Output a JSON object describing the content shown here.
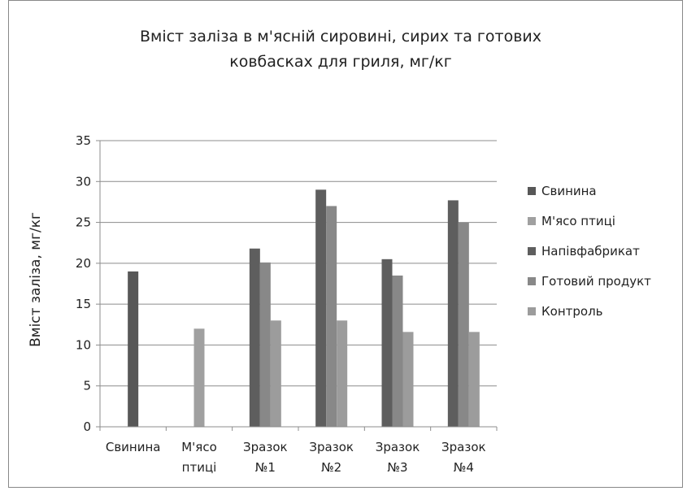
{
  "chart_data": {
    "type": "bar",
    "title_line1": "Вміст заліза в м'ясній сировині, сирих та готових",
    "title_line2": "ковбасках для гриля, мг/кг",
    "ylabel": "Вміст заліза, мг/кг",
    "ylim": [
      0,
      35
    ],
    "yticks": [
      0,
      5,
      10,
      15,
      20,
      25,
      30,
      35
    ],
    "grid": true,
    "legend_position": "right",
    "categories": [
      [
        "Свинина"
      ],
      [
        "М'ясо",
        "птиці"
      ],
      [
        "Зразок",
        "№1"
      ],
      [
        "Зразок",
        "№2"
      ],
      [
        "Зразок",
        "№3"
      ],
      [
        "Зразок",
        "№4"
      ]
    ],
    "series": [
      {
        "name": "Свинина",
        "color": "#575757",
        "values": [
          19,
          null,
          null,
          null,
          null,
          null
        ]
      },
      {
        "name": "М'ясо птиці",
        "color": "#a0a0a0",
        "values": [
          null,
          12,
          null,
          null,
          null,
          null
        ]
      },
      {
        "name": "Напівфабрикат",
        "color": "#5e5e5e",
        "values": [
          null,
          null,
          21.8,
          29,
          20.5,
          27.7
        ]
      },
      {
        "name": "Готовий продукт",
        "color": "#888888",
        "values": [
          null,
          null,
          20.1,
          27,
          18.5,
          25
        ]
      },
      {
        "name": "Контроль",
        "color": "#9c9c9c",
        "values": [
          null,
          null,
          13,
          13,
          11.6,
          11.6
        ]
      }
    ]
  }
}
